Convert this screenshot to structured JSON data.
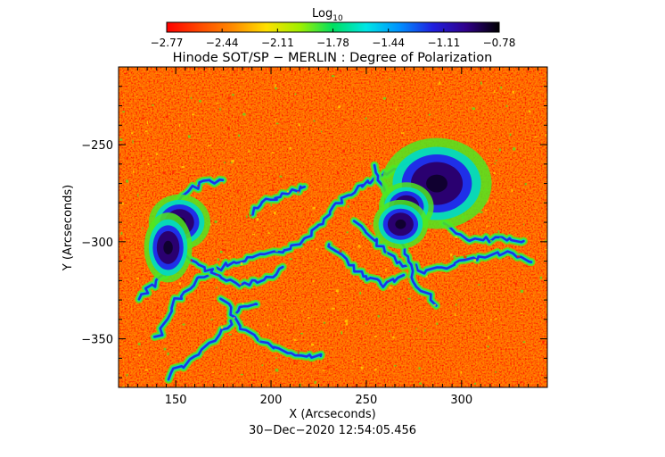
{
  "colorbar": {
    "label_main": "Log",
    "label_sub": "10",
    "ticks": [
      "−2.77",
      "−2.44",
      "−2.11",
      "−1.78",
      "−1.44",
      "−1.11",
      "−0.78"
    ],
    "colors": [
      "#ff0000",
      "#ff4a00",
      "#ff8c00",
      "#ffe000",
      "#a0f000",
      "#00e060",
      "#00e6e6",
      "#0090ff",
      "#2020e0",
      "#30008a",
      "#000000"
    ]
  },
  "title": "Hinode SOT/SP − MERLIN : Degree of Polarization",
  "x_axis": {
    "label": "X (Arcseconds)",
    "ticks": [
      {
        "value": 150,
        "text": "150"
      },
      {
        "value": 200,
        "text": "200"
      },
      {
        "value": 250,
        "text": "250"
      },
      {
        "value": 300,
        "text": "300"
      }
    ],
    "range": [
      120,
      345
    ]
  },
  "y_axis": {
    "label": "Y (Arcseconds)",
    "ticks": [
      {
        "value": -250,
        "text": "−250"
      },
      {
        "value": -300,
        "text": "−300"
      },
      {
        "value": -350,
        "text": "−350"
      }
    ],
    "range": [
      -375,
      -210
    ]
  },
  "timestamp": "30−Dec−2020 12:54:05.456",
  "map_colors": {
    "background": "#ff4a00",
    "speckle_orange": "#ff7a00",
    "speckle_yellow": "#ffd800",
    "speckle_red": "#ff1a00",
    "network_green": "#50e820",
    "network_cyan": "#00d8c8",
    "network_blue": "#1f2fe8",
    "umbra": "#2a0070",
    "umbra_core": "#0a0020"
  }
}
